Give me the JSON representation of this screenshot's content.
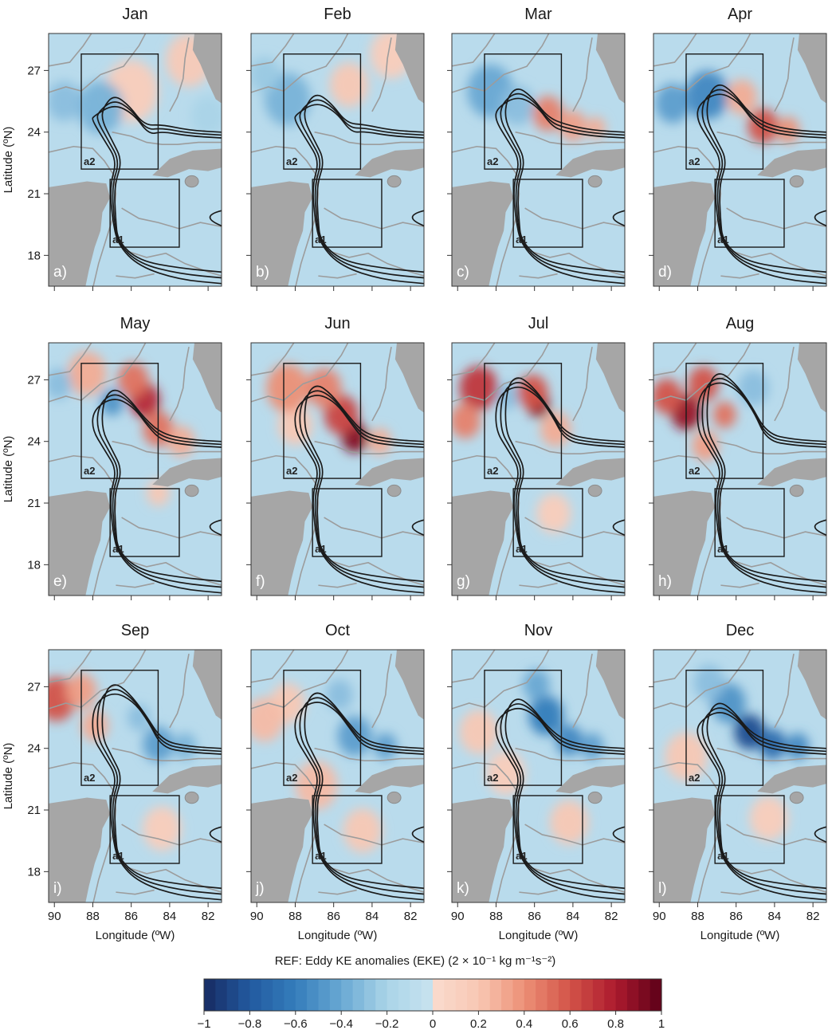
{
  "chart_data": {
    "type": "heatmap",
    "colorbar_label": "REF: Eddy KE anomalies (EKE) (2 × 10⁻¹ kg m⁻¹s⁻²)",
    "colorbar_ticks": [
      "−1",
      "−0.8",
      "−0.6",
      "−0.4",
      "−0.2",
      "0",
      "0.2",
      "0.4",
      "0.6",
      "0.8",
      "1"
    ],
    "colorbar_range": [
      -1,
      1
    ],
    "xlabel": "Longitude (ºW)",
    "ylabel": "Latitude (ºN)",
    "xticks": [
      "90",
      "88",
      "86",
      "84",
      "82"
    ],
    "yticks": [
      "27",
      "24",
      "21",
      "18"
    ],
    "xlim": [
      90.3,
      81.3
    ],
    "ylim": [
      16.5,
      28.8
    ],
    "box_labels": [
      "a1",
      "a2"
    ],
    "boxes": {
      "a1": {
        "lon": [
          87.1,
          83.5
        ],
        "lat": [
          18.4,
          21.7
        ]
      },
      "a2": {
        "lon": [
          88.6,
          84.6
        ],
        "lat": [
          22.2,
          27.8
        ]
      }
    },
    "panels": [
      {
        "month": "Jan",
        "label": "a)",
        "loop_lat": 25.6,
        "hot": [],
        "cold": [
          [
            87.6,
            25.2,
            -0.35,
            1.2
          ],
          [
            89.5,
            25.5,
            -0.3,
            0.9
          ],
          [
            82,
            24.8,
            -0.2,
            0.9
          ]
        ],
        "extra": [
          [
            86,
            26,
            0.15,
            1.4
          ],
          [
            83,
            27.5,
            0.18,
            1.2
          ]
        ]
      },
      {
        "month": "Feb",
        "label": "b)",
        "loop_lat": 25.7,
        "hot": [
          [
            85.2,
            26.3,
            0.2,
            1.0
          ]
        ],
        "cold": [
          [
            88.4,
            25.6,
            -0.35,
            1.2
          ],
          [
            89.6,
            26.8,
            -0.25,
            0.8
          ]
        ],
        "extra": [
          [
            83,
            27.8,
            0.15,
            1.1
          ]
        ]
      },
      {
        "month": "Mar",
        "label": "c)",
        "loop_lat": 26.0,
        "hot": [
          [
            85.3,
            24.9,
            0.45,
            0.8
          ],
          [
            84,
            24.3,
            0.35,
            0.7
          ],
          [
            82.8,
            24.2,
            0.3,
            0.5
          ]
        ],
        "cold": [
          [
            88.3,
            26,
            -0.4,
            1.2
          ],
          [
            86.9,
            25.3,
            -0.3,
            0.9
          ]
        ],
        "extra": []
      },
      {
        "month": "Apr",
        "label": "d)",
        "loop_lat": 26.2,
        "hot": [
          [
            84.6,
            24.3,
            0.6,
            0.8
          ],
          [
            83.3,
            24.1,
            0.4,
            0.6
          ],
          [
            85.7,
            25.7,
            0.3,
            0.8
          ]
        ],
        "cold": [
          [
            87.5,
            25.8,
            -0.55,
            1.1
          ],
          [
            89.3,
            25.4,
            -0.45,
            0.9
          ]
        ],
        "extra": []
      },
      {
        "month": "May",
        "label": "e)",
        "loop_lat": 26.4,
        "hot": [
          [
            85.3,
            26,
            0.75,
            0.8
          ],
          [
            85.9,
            27,
            0.5,
            0.8
          ],
          [
            84.6,
            24.6,
            0.5,
            0.8
          ],
          [
            83.4,
            24,
            0.3,
            0.7
          ]
        ],
        "cold": [
          [
            87,
            25.9,
            -0.5,
            0.6
          ],
          [
            89.8,
            26.8,
            -0.3,
            0.7
          ]
        ],
        "extra": [
          [
            88.3,
            27.3,
            0.3,
            1.0
          ],
          [
            84.6,
            21.5,
            0.2,
            0.6
          ]
        ]
      },
      {
        "month": "Jun",
        "label": "f)",
        "loop_lat": 26.6,
        "hot": [
          [
            84.9,
            24.2,
            0.9,
            0.7
          ],
          [
            85.6,
            25.3,
            0.65,
            0.9
          ],
          [
            86.5,
            26.6,
            0.45,
            0.9
          ],
          [
            88.4,
            26.6,
            0.4,
            1.1
          ],
          [
            83.6,
            24,
            0.3,
            0.6
          ]
        ],
        "cold": [],
        "extra": [
          [
            88,
            24.8,
            0.2,
            0.9
          ]
        ]
      },
      {
        "month": "Jul",
        "label": "g)",
        "loop_lat": 27.0,
        "hot": [
          [
            85.8,
            25.8,
            0.9,
            0.6
          ],
          [
            86.1,
            26.4,
            0.6,
            0.8
          ],
          [
            88.9,
            26.6,
            0.7,
            1.0
          ],
          [
            89.6,
            25,
            0.45,
            0.8
          ],
          [
            84.9,
            24.6,
            0.3,
            0.8
          ]
        ],
        "cold": [
          [
            87.4,
            26.2,
            -0.3,
            0.6
          ]
        ],
        "extra": [
          [
            85,
            20.5,
            0.15,
            0.9
          ]
        ]
      },
      {
        "month": "Aug",
        "label": "h)",
        "loop_lat": 27.2,
        "hot": [
          [
            88.6,
            25.4,
            0.85,
            0.8
          ],
          [
            87.7,
            26.8,
            0.6,
            0.8
          ],
          [
            89.6,
            26.2,
            0.6,
            0.8
          ],
          [
            86.6,
            25.3,
            0.5,
            0.6
          ],
          [
            87.6,
            23.8,
            0.35,
            0.7
          ]
        ],
        "cold": [
          [
            85.1,
            26.6,
            -0.3,
            0.8
          ]
        ],
        "extra": []
      },
      {
        "month": "Sep",
        "label": "i)",
        "loop_lat": 27.0,
        "hot": [
          [
            89.9,
            26.4,
            0.6,
            1.0
          ],
          [
            88.6,
            26.8,
            0.35,
            0.8
          ],
          [
            87.9,
            25.1,
            0.3,
            0.7
          ]
        ],
        "cold": [
          [
            84.6,
            24.2,
            -0.45,
            0.8
          ],
          [
            83.2,
            24.1,
            -0.35,
            0.6
          ],
          [
            85.6,
            25.5,
            -0.3,
            0.6
          ]
        ],
        "extra": [
          [
            84.4,
            20.1,
            0.15,
            1.0
          ]
        ]
      },
      {
        "month": "Oct",
        "label": "j)",
        "loop_lat": 26.6,
        "hot": [
          [
            86.9,
            22.2,
            0.25,
            1.1
          ],
          [
            84.5,
            20,
            0.2,
            1.0
          ],
          [
            89.6,
            25.4,
            0.25,
            1.0
          ]
        ],
        "cold": [
          [
            84.9,
            24.6,
            -0.45,
            0.9
          ],
          [
            83.3,
            24.1,
            -0.45,
            0.6
          ],
          [
            85.7,
            26.6,
            -0.3,
            0.7
          ]
        ],
        "extra": [
          [
            88.4,
            26.2,
            0.2,
            0.9
          ]
        ]
      },
      {
        "month": "Nov",
        "label": "k)",
        "loop_lat": 26.3,
        "hot": [
          [
            88.9,
            24.8,
            0.2,
            1.0
          ],
          [
            84.2,
            20.4,
            0.2,
            1.0
          ]
        ],
        "cold": [
          [
            85.4,
            25.6,
            -0.6,
            0.9
          ],
          [
            84.2,
            24.4,
            -0.55,
            0.7
          ],
          [
            83,
            24.1,
            -0.45,
            0.6
          ],
          [
            85.9,
            27.1,
            -0.4,
            0.7
          ]
        ],
        "extra": [
          [
            87.5,
            22.8,
            0.15,
            1.0
          ]
        ]
      },
      {
        "month": "Dec",
        "label": "l)",
        "loop_lat": 26.1,
        "hot": [
          [
            88.6,
            23.6,
            0.2,
            1.1
          ],
          [
            84.3,
            20.6,
            0.15,
            1.0
          ]
        ],
        "cold": [
          [
            85.3,
            24.8,
            -0.85,
            0.8
          ],
          [
            84.1,
            24.2,
            -0.7,
            0.7
          ],
          [
            86.4,
            26.2,
            -0.5,
            0.9
          ],
          [
            82.8,
            24.1,
            -0.55,
            0.6
          ],
          [
            87.4,
            27.2,
            -0.3,
            0.8
          ]
        ],
        "extra": []
      }
    ]
  }
}
